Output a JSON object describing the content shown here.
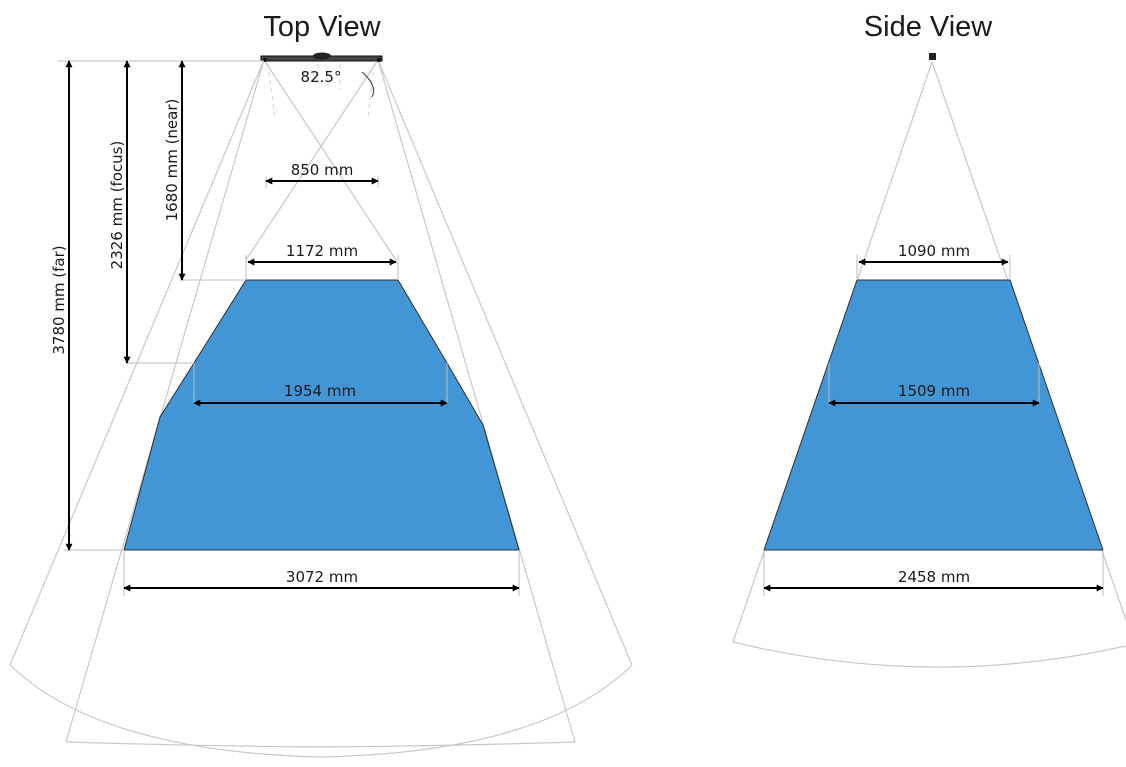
{
  "top_view": {
    "title": "Top View",
    "angle": "82.5°",
    "depths": {
      "near": "1680 mm (near)",
      "focus": "2326 mm (focus)",
      "far": "3780 mm (far)"
    },
    "widths": {
      "sensor": "850 mm",
      "near": "1172 mm",
      "focus": "1954 mm",
      "far": "3072 mm"
    }
  },
  "side_view": {
    "title": "Side View",
    "widths": {
      "near": "1090 mm",
      "focus": "1509 mm",
      "far": "2458 mm"
    }
  },
  "colors": {
    "zone_fill": "#4396d6",
    "rays": "#c8c8c8",
    "dimension_lines": "#000000"
  }
}
